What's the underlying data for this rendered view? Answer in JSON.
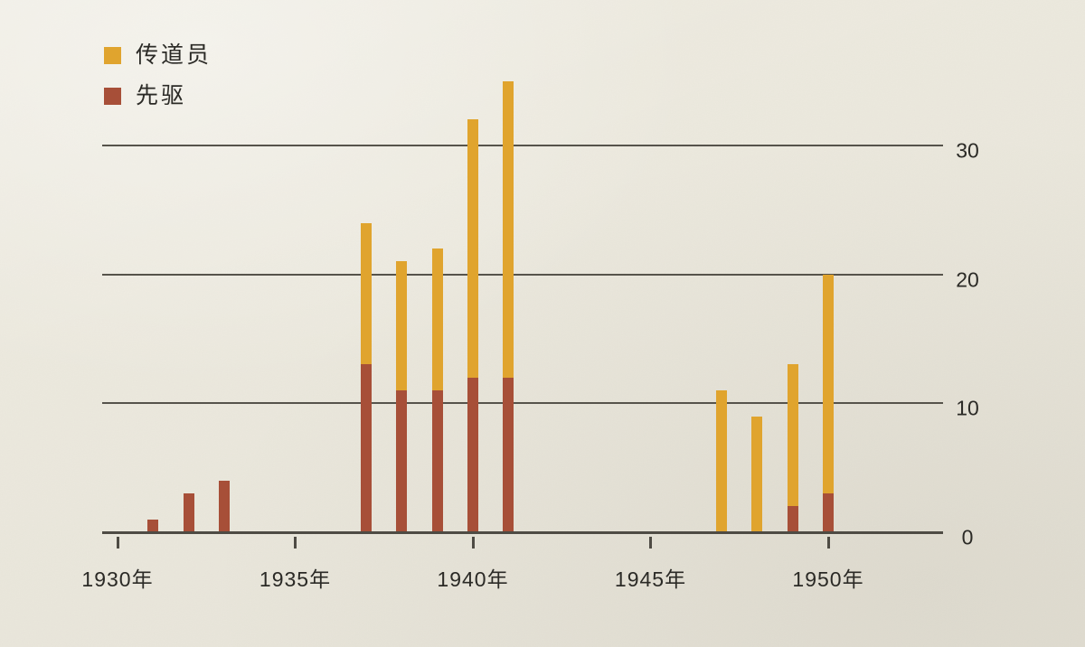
{
  "colors": {
    "background": "#EDEADF",
    "publisher_gold": "#E0A42E",
    "pioneer_brown": "#A74F38",
    "axis_line": "#55524A",
    "text": "#2B2A26"
  },
  "legend": {
    "items": [
      {
        "label": "传道员",
        "color": "#E0A42E"
      },
      {
        "label": "先驱",
        "color": "#A74F38"
      }
    ]
  },
  "chart_data": {
    "type": "bar",
    "stacked": true,
    "title": "",
    "xlabel": "",
    "ylabel": "",
    "legend_position": "top-left",
    "y_axis_side": "right",
    "grid": "horizontal lines at 10, 20, 30",
    "ylim": [
      0,
      36
    ],
    "y_ticks": [
      0,
      10,
      20,
      30
    ],
    "x_tick_years": [
      1930,
      1935,
      1940,
      1945,
      1950
    ],
    "x_tick_labels": [
      "1930年",
      "1935年",
      "1940年",
      "1945年",
      "1950年"
    ],
    "series": [
      {
        "name": "传道员",
        "meaning": "total bar height (publishers)",
        "color": "#E0A42E"
      },
      {
        "name": "先驱",
        "meaning": "bottom segment (pioneers)",
        "color": "#A74F38"
      }
    ],
    "bars": [
      {
        "year": 1931,
        "total": 1,
        "pioneers": 1
      },
      {
        "year": 1932,
        "total": 3,
        "pioneers": 3
      },
      {
        "year": 1933,
        "total": 4,
        "pioneers": 4
      },
      {
        "year": 1937,
        "total": 24,
        "pioneers": 13
      },
      {
        "year": 1938,
        "total": 21,
        "pioneers": 11
      },
      {
        "year": 1939,
        "total": 22,
        "pioneers": 11
      },
      {
        "year": 1940,
        "total": 32,
        "pioneers": 12
      },
      {
        "year": 1941,
        "total": 35,
        "pioneers": 12
      },
      {
        "year": 1947,
        "total": 11,
        "pioneers": 0
      },
      {
        "year": 1948,
        "total": 9,
        "pioneers": 0
      },
      {
        "year": 1949,
        "total": 13,
        "pioneers": 2
      },
      {
        "year": 1950,
        "total": 20,
        "pioneers": 3
      }
    ]
  }
}
